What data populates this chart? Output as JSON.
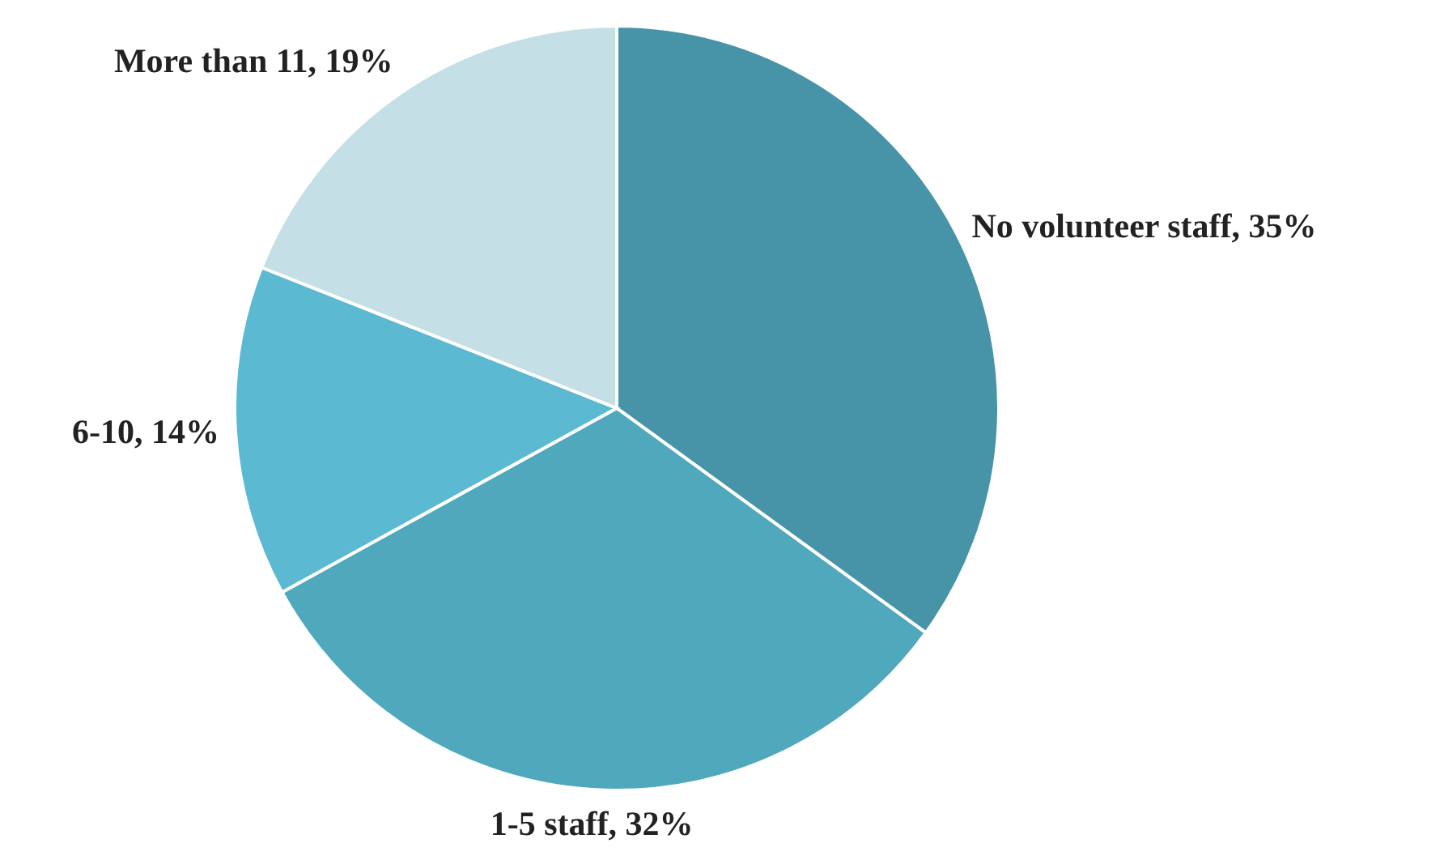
{
  "chart_data": {
    "type": "pie",
    "categories": [
      "No volunteer staff",
      "1-5 staff",
      "6-10",
      "More than 11"
    ],
    "values": [
      35,
      32,
      14,
      19
    ],
    "value_labels": [
      "35%",
      "32%",
      "14%",
      "19%"
    ],
    "colors": [
      "#4793a8",
      "#4fa8bc",
      "#5bb9d1",
      "#c5dfe7"
    ],
    "legend": false
  }
}
